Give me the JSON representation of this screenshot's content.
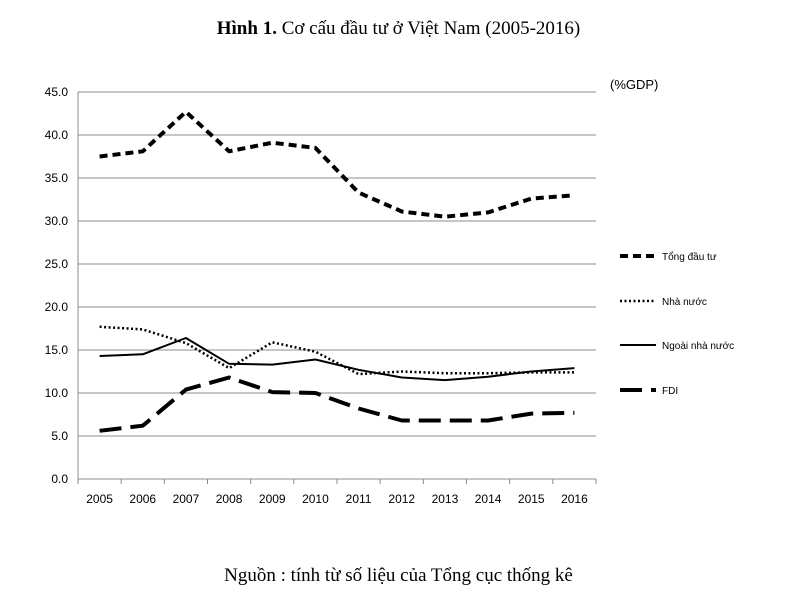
{
  "title_prefix": "Hình 1.",
  "title_rest": "Cơ cấu đầu tư ở Việt Nam (2005-2016)",
  "source": "Nguồn : tính từ số liệu của Tổng cục thống kê",
  "chart_data": {
    "type": "line",
    "title": "Hình 1. Cơ cấu đầu tư ở Việt Nam (2005-2016)",
    "xlabel": "",
    "ylabel": "",
    "unit_label": "(%GDP)",
    "categories": [
      "2005",
      "2006",
      "2007",
      "2008",
      "2009",
      "2010",
      "2011",
      "2012",
      "2013",
      "2014",
      "2015",
      "2016"
    ],
    "y_ticks": [
      "0.0",
      "5.0",
      "10.0",
      "15.0",
      "20.0",
      "25.0",
      "30.0",
      "35.0",
      "40.0",
      "45.0"
    ],
    "ylim": [
      0,
      45
    ],
    "grid": true,
    "legend_position": "right",
    "series": [
      {
        "name": "Tổng đầu tư",
        "style": "short-dash",
        "values": [
          37.5,
          38.1,
          42.7,
          38.1,
          39.1,
          38.5,
          33.3,
          31.1,
          30.5,
          31.0,
          32.6,
          33.0
        ]
      },
      {
        "name": "Nhà nước",
        "style": "dotted",
        "values": [
          17.7,
          17.4,
          15.8,
          12.9,
          15.9,
          14.8,
          12.2,
          12.5,
          12.3,
          12.3,
          12.4,
          12.4
        ]
      },
      {
        "name": "Ngoài nhà nước",
        "style": "solid",
        "values": [
          14.3,
          14.5,
          16.4,
          13.4,
          13.3,
          13.9,
          12.7,
          11.8,
          11.5,
          11.9,
          12.5,
          12.9
        ]
      },
      {
        "name": "FDI",
        "style": "long-dash",
        "values": [
          5.6,
          6.2,
          10.4,
          11.8,
          10.1,
          10.0,
          8.2,
          6.8,
          6.8,
          6.8,
          7.6,
          7.7
        ]
      }
    ]
  }
}
